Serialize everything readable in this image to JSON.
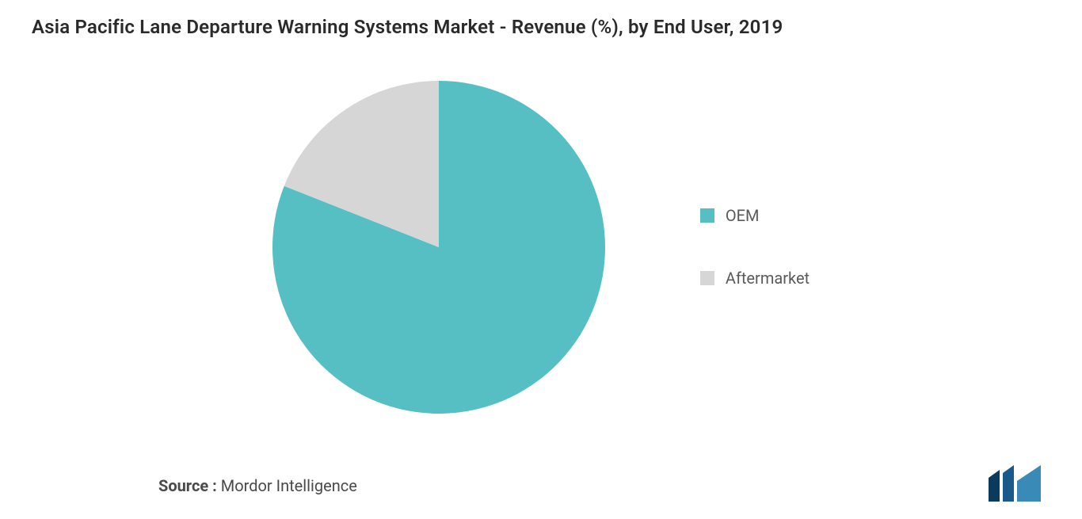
{
  "chart": {
    "type": "pie",
    "title": "Asia Pacific Lane Departure Warning Systems Market - Revenue (%), by End User, 2019",
    "title_fontsize": 24,
    "title_color": "#2a2a2a",
    "background_color": "#ffffff",
    "pie_radius": 210,
    "slices": [
      {
        "label": "OEM",
        "value": 81,
        "color": "#56bfc4",
        "start_angle": 0
      },
      {
        "label": "Aftermarket",
        "value": 19,
        "color": "#d6d6d6",
        "start_angle": 291.6
      }
    ],
    "legend": {
      "position": "right",
      "items": [
        {
          "label": "OEM",
          "color": "#56bfc4"
        },
        {
          "label": "Aftermarket",
          "color": "#d6d6d6"
        }
      ],
      "label_fontsize": 20,
      "label_color": "#5a5a5a",
      "swatch_size": 18
    }
  },
  "source": {
    "prefix": "Source :",
    "name": "Mordor Intelligence",
    "fontsize": 20,
    "color": "#4a4a4a"
  },
  "brand": {
    "name": "mordor-intelligence-logo",
    "colors": {
      "bar1": "#0a3a5c",
      "bar2": "#1a5a8a",
      "bar3": "#3a8ab8"
    }
  }
}
